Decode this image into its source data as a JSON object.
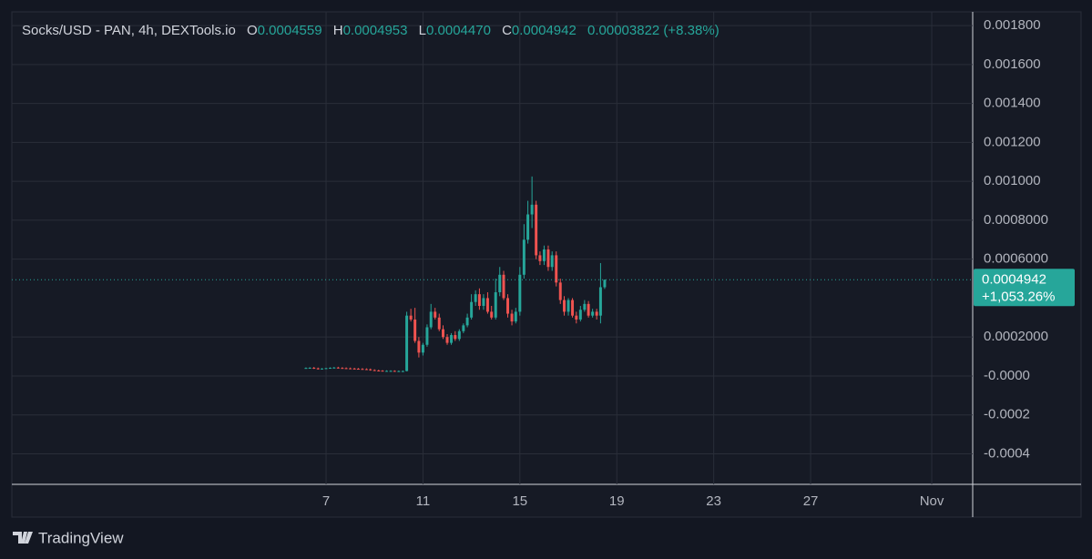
{
  "header": {
    "symbol": "Socks/USD - PAN, 4h, DEXTools.io",
    "o_label": "O",
    "o": "0.0004559",
    "h_label": "H",
    "h": "0.0004953",
    "l_label": "L",
    "l": "0.0004470",
    "c_label": "C",
    "c": "0.0004942",
    "change": "0.00003822 (+8.38%)"
  },
  "branding": "TradingView",
  "chart_data": {
    "type": "candlestick",
    "x": [
      6.17,
      6.33,
      6.5,
      6.67,
      6.83,
      7.0,
      7.17,
      7.33,
      7.5,
      7.67,
      7.83,
      8.0,
      8.17,
      8.33,
      8.5,
      8.67,
      8.83,
      9.0,
      9.17,
      9.33,
      9.5,
      9.67,
      9.83,
      10.0,
      10.17,
      10.33,
      10.5,
      10.67,
      10.83,
      11.0,
      11.17,
      11.33,
      11.5,
      11.67,
      11.83,
      12.0,
      12.17,
      12.33,
      12.5,
      12.67,
      12.83,
      13.0,
      13.17,
      13.33,
      13.5,
      13.67,
      13.83,
      14.0,
      14.17,
      14.33,
      14.5,
      14.67,
      14.83,
      15.0,
      15.17,
      15.33,
      15.5,
      15.67,
      15.83,
      16.0,
      16.17,
      16.33,
      16.5,
      16.67,
      16.83,
      17.0,
      17.17,
      17.33,
      17.5,
      17.67,
      17.83,
      18.0,
      18.17,
      18.33,
      18.5
    ],
    "open": [
      4e-05,
      4.1e-05,
      4.2e-05,
      3.9e-05,
      3.6e-05,
      3.8e-05,
      4e-05,
      4.2e-05,
      4.3e-05,
      4.1e-05,
      4e-05,
      3.9e-05,
      3.8e-05,
      3.7e-05,
      3.6e-05,
      3.5e-05,
      3.4e-05,
      3e-05,
      2.8e-05,
      2.7e-05,
      2.6e-05,
      2.6e-05,
      2.6e-05,
      2.5e-05,
      2.5e-05,
      2.5e-05,
      0.00031,
      0.00029,
      0.00018,
      0.00012,
      0.00016,
      0.00025,
      0.00033,
      0.0003,
      0.00024,
      0.0002,
      0.00017,
      0.00021,
      0.00019,
      0.00023,
      0.00026,
      0.0003,
      0.00038,
      0.00042,
      0.00036,
      0.0004,
      0.00033,
      0.0003,
      0.00043,
      0.00052,
      0.0004,
      0.00032,
      0.00028,
      0.00033,
      0.00052,
      0.0007,
      0.00083,
      0.00088,
      0.00062,
      0.00059,
      0.00065,
      0.00056,
      0.00062,
      0.00048,
      0.00039,
      0.00033,
      0.00039,
      0.00031,
      0.00029,
      0.00034,
      0.00037,
      0.00031,
      0.00033,
      0.00031,
      0.0004559
    ],
    "high": [
      4.4e-05,
      4.5e-05,
      4.6e-05,
      4.3e-05,
      4e-05,
      4.2e-05,
      4.4e-05,
      4.6e-05,
      4.7e-05,
      4.5e-05,
      4.4e-05,
      4.3e-05,
      4.2e-05,
      4.1e-05,
      4e-05,
      3.9e-05,
      3.8e-05,
      3.4e-05,
      3.2e-05,
      3e-05,
      2.9e-05,
      2.9e-05,
      2.9e-05,
      2.8e-05,
      2.8e-05,
      0.00033,
      0.000345,
      0.00035,
      0.0002,
      0.00017,
      0.000265,
      0.00037,
      0.00035,
      0.00032,
      0.00026,
      0.000215,
      0.00022,
      0.00023,
      0.00024,
      0.00027,
      0.00032,
      0.00042,
      0.00044,
      0.00045,
      0.00042,
      0.00043,
      0.00036,
      0.0005,
      0.00056,
      0.00054,
      0.00042,
      0.00034,
      0.00035,
      0.00056,
      0.00078,
      0.0009,
      0.001025,
      0.0009,
      0.00064,
      0.00067,
      0.00067,
      0.00064,
      0.00064,
      0.0005,
      0.00041,
      0.0004,
      0.0004,
      0.00033,
      0.00036,
      0.00039,
      0.000385,
      0.000345,
      0.000345,
      0.00058,
      0.0004953
    ],
    "low": [
      3.7e-05,
      3.8e-05,
      3.6e-05,
      3.3e-05,
      3.3e-05,
      3.5e-05,
      3.7e-05,
      3.9e-05,
      3.8e-05,
      3.7e-05,
      3.6e-05,
      3.5e-05,
      3.4e-05,
      3.3e-05,
      3.2e-05,
      3.1e-05,
      2.7e-05,
      2.5e-05,
      2.4e-05,
      2.3e-05,
      2.3e-05,
      2.3e-05,
      2.2e-05,
      2.2e-05,
      2.2e-05,
      2.4e-05,
      0.00028,
      0.00017,
      9.5e-05,
      0.000105,
      0.00015,
      0.00024,
      0.00029,
      0.00023,
      0.00019,
      0.00016,
      0.00016,
      0.00018,
      0.00018,
      0.00022,
      0.00025,
      0.00029,
      0.00036,
      0.00034,
      0.00034,
      0.00032,
      0.00029,
      0.00029,
      0.00041,
      0.00039,
      0.0003,
      0.00026,
      0.00027,
      0.00031,
      0.0005,
      0.00068,
      0.00076,
      0.0006,
      0.00057,
      0.00057,
      0.00054,
      0.00054,
      0.00046,
      0.00037,
      0.00031,
      0.00031,
      0.0003,
      0.00027,
      0.00028,
      0.00033,
      0.0003,
      0.0003,
      0.00029,
      0.00027,
      0.000447
    ],
    "close": [
      4.1e-05,
      4.2e-05,
      3.9e-05,
      3.6e-05,
      3.8e-05,
      4e-05,
      4.2e-05,
      4.3e-05,
      4.1e-05,
      4e-05,
      3.9e-05,
      3.8e-05,
      3.7e-05,
      3.6e-05,
      3.5e-05,
      3.4e-05,
      3e-05,
      2.8e-05,
      2.7e-05,
      2.6e-05,
      2.6e-05,
      2.6e-05,
      2.5e-05,
      2.5e-05,
      2.5e-05,
      0.00031,
      0.00029,
      0.00018,
      0.00012,
      0.00016,
      0.00025,
      0.00033,
      0.0003,
      0.00024,
      0.0002,
      0.00017,
      0.00021,
      0.00019,
      0.00023,
      0.00026,
      0.0003,
      0.00038,
      0.00042,
      0.00036,
      0.0004,
      0.00033,
      0.0003,
      0.00043,
      0.00052,
      0.0004,
      0.00032,
      0.00028,
      0.00033,
      0.00052,
      0.0007,
      0.00083,
      0.00088,
      0.00062,
      0.00059,
      0.00065,
      0.00056,
      0.00062,
      0.00048,
      0.00039,
      0.00033,
      0.00039,
      0.00031,
      0.00029,
      0.00034,
      0.00037,
      0.00031,
      0.00033,
      0.00031,
      0.0004559,
      0.0004942
    ],
    "up_color": "#26a69a",
    "down_color": "#ef5350",
    "xlim": [
      -5.97,
      33.69
    ],
    "xticks": [
      7,
      11,
      15,
      19,
      23,
      27,
      {
        "value": 32,
        "label": "Nov"
      }
    ],
    "ylim": [
      -0.000557,
      0.001871
    ],
    "yticks": [
      {
        "value": 0.0018,
        "label": "0.001800"
      },
      {
        "value": 0.0016,
        "label": "0.001600"
      },
      {
        "value": 0.0014,
        "label": "0.001400"
      },
      {
        "value": 0.0012,
        "label": "0.001200"
      },
      {
        "value": 0.001,
        "label": "0.001000"
      },
      {
        "value": 0.0008,
        "label": "0.0008000"
      },
      {
        "value": 0.0006,
        "label": "0.0006000"
      },
      {
        "value": 0.0002,
        "label": "0.0002000"
      },
      {
        "value": 0,
        "label": "-0.0000"
      },
      -0.0002,
      -0.0004
    ],
    "grid": true,
    "last_price": 0.0004942,
    "change_label": "+1,053.26%"
  }
}
